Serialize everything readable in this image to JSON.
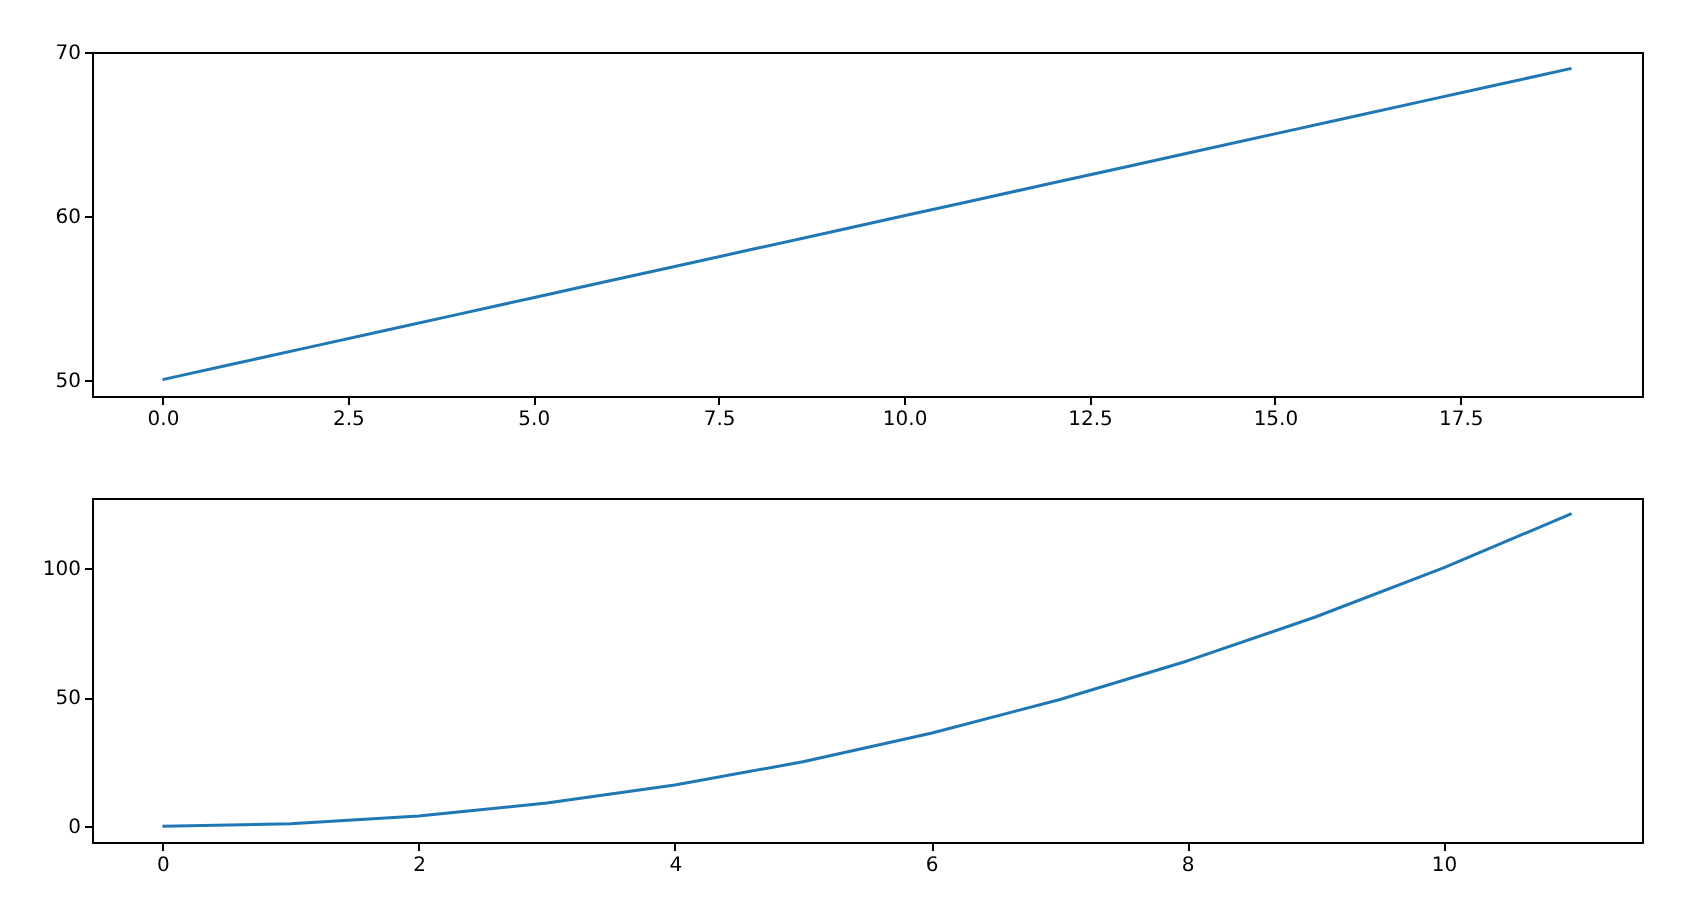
{
  "chart_data": [
    {
      "type": "line",
      "x": [
        0,
        1,
        2,
        3,
        4,
        5,
        6,
        7,
        8,
        9,
        10,
        11,
        12,
        13,
        14,
        15,
        16,
        17,
        18,
        19
      ],
      "series": [
        {
          "color": "#1f77b4",
          "values": [
            50,
            51,
            52,
            53,
            54,
            55,
            56,
            57,
            58,
            59,
            60,
            61,
            62,
            63,
            64,
            65,
            66,
            67,
            68,
            69
          ]
        }
      ],
      "xlim": [
        -0.95,
        19.95
      ],
      "ylim": [
        49,
        70
      ],
      "xticks": [
        {
          "value": 0,
          "label": "0.0"
        },
        {
          "value": 2.5,
          "label": "2.5"
        },
        {
          "value": 5,
          "label": "5.0"
        },
        {
          "value": 7.5,
          "label": "7.5"
        },
        {
          "value": 10,
          "label": "10.0"
        },
        {
          "value": 12.5,
          "label": "12.5"
        },
        {
          "value": 15,
          "label": "15.0"
        },
        {
          "value": 17.5,
          "label": "17.5"
        }
      ],
      "yticks": [
        50,
        60,
        70
      ]
    },
    {
      "type": "line",
      "x": [
        0,
        1,
        2,
        3,
        4,
        5,
        6,
        7,
        8,
        9,
        10,
        11
      ],
      "series": [
        {
          "color": "#1f77b4",
          "values": [
            0,
            1,
            4,
            9,
            16,
            25,
            36,
            49,
            64,
            81,
            100,
            121
          ]
        }
      ],
      "xlim": [
        -0.55,
        11.55
      ],
      "ylim": [
        -6.05,
        127.05
      ],
      "xticks": [
        0,
        2,
        4,
        6,
        8,
        10
      ],
      "yticks": [
        0,
        50,
        100
      ]
    }
  ]
}
